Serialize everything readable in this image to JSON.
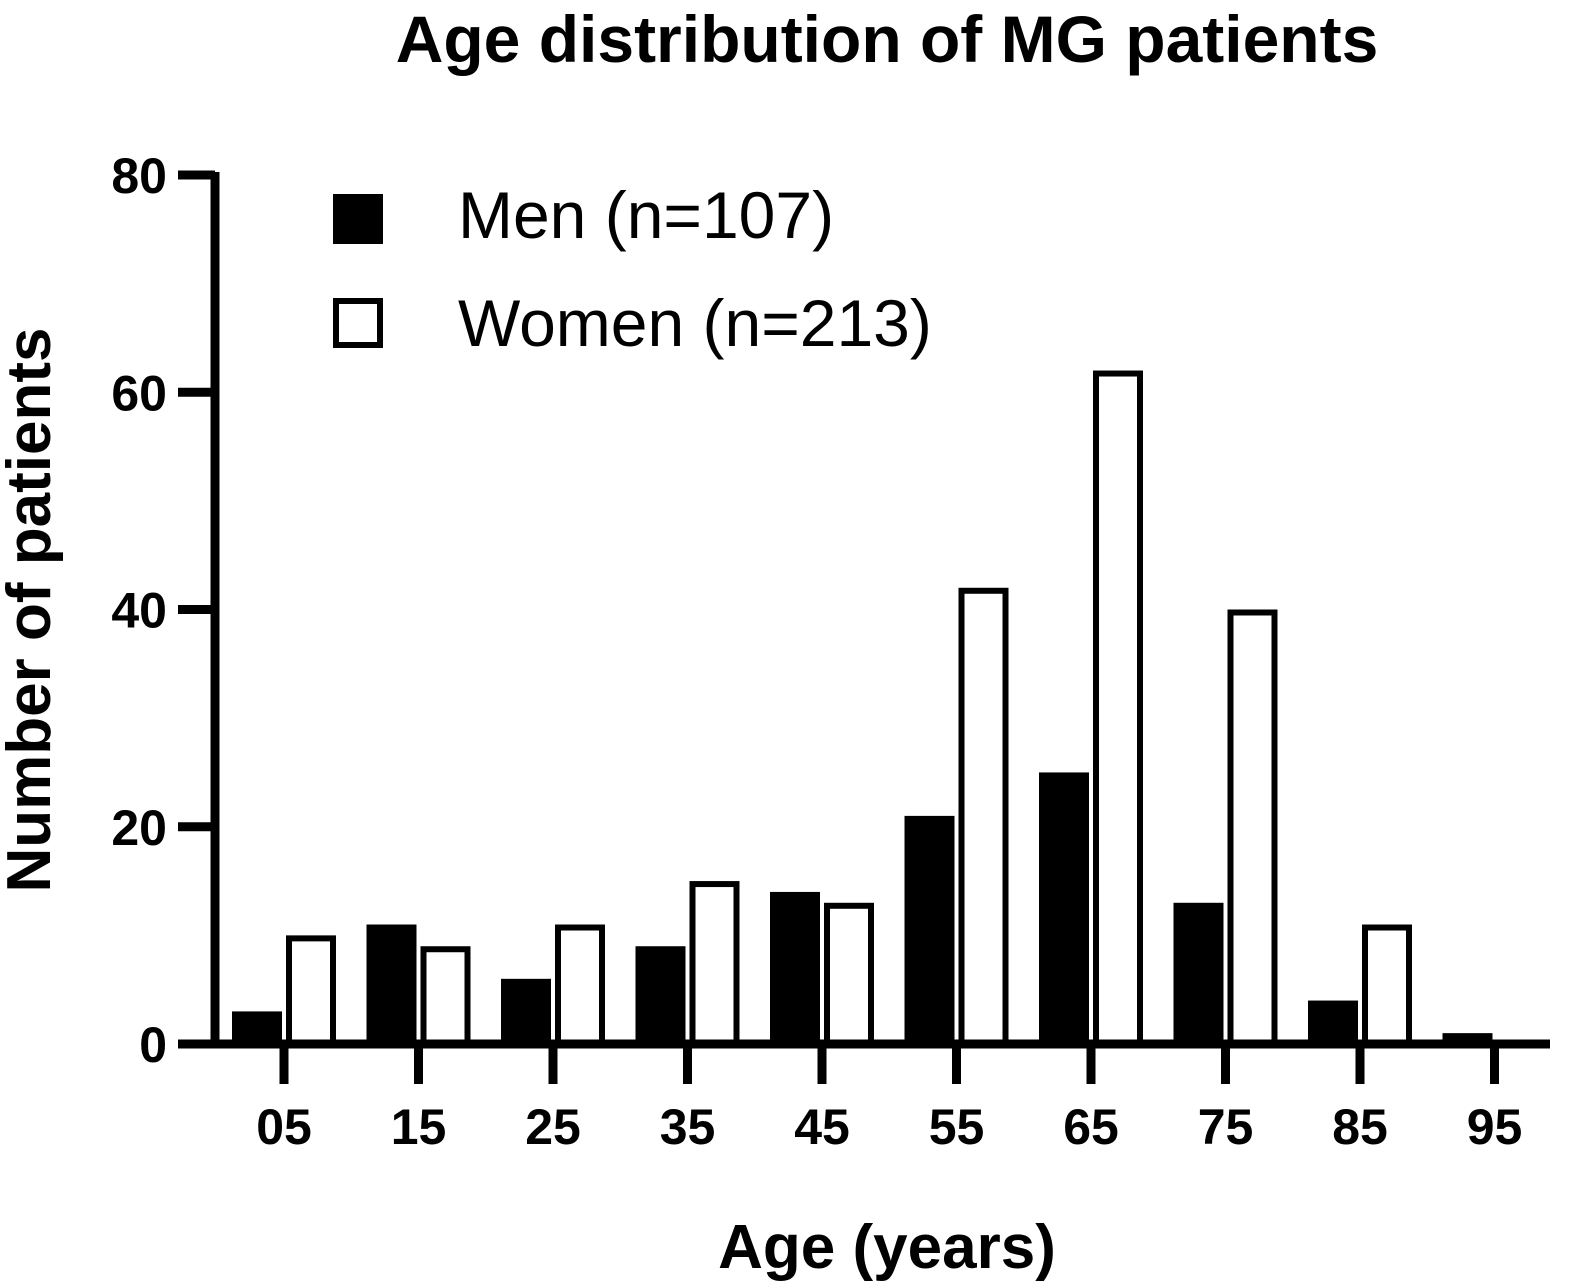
{
  "chart_data": {
    "type": "bar",
    "title": "Age distribution of MG patients",
    "xlabel": "Age (years)",
    "ylabel": "Number of patients",
    "ylim": [
      0,
      80
    ],
    "yticks": [
      "0",
      "20",
      "40",
      "60",
      "80"
    ],
    "categories": [
      "05",
      "15",
      "25",
      "35",
      "45",
      "55",
      "65",
      "75",
      "85",
      "95"
    ],
    "series": [
      {
        "name": "Men (n=107)",
        "values": [
          3,
          11,
          6,
          9,
          14,
          21,
          25,
          13,
          4,
          1
        ],
        "fill": "#000000"
      },
      {
        "name": "Women (n=213)",
        "values": [
          10,
          9,
          11,
          15,
          13,
          42,
          62,
          40,
          11,
          0
        ],
        "fill": "#ffffff"
      }
    ],
    "legend_position": "top-left",
    "grid": false
  }
}
